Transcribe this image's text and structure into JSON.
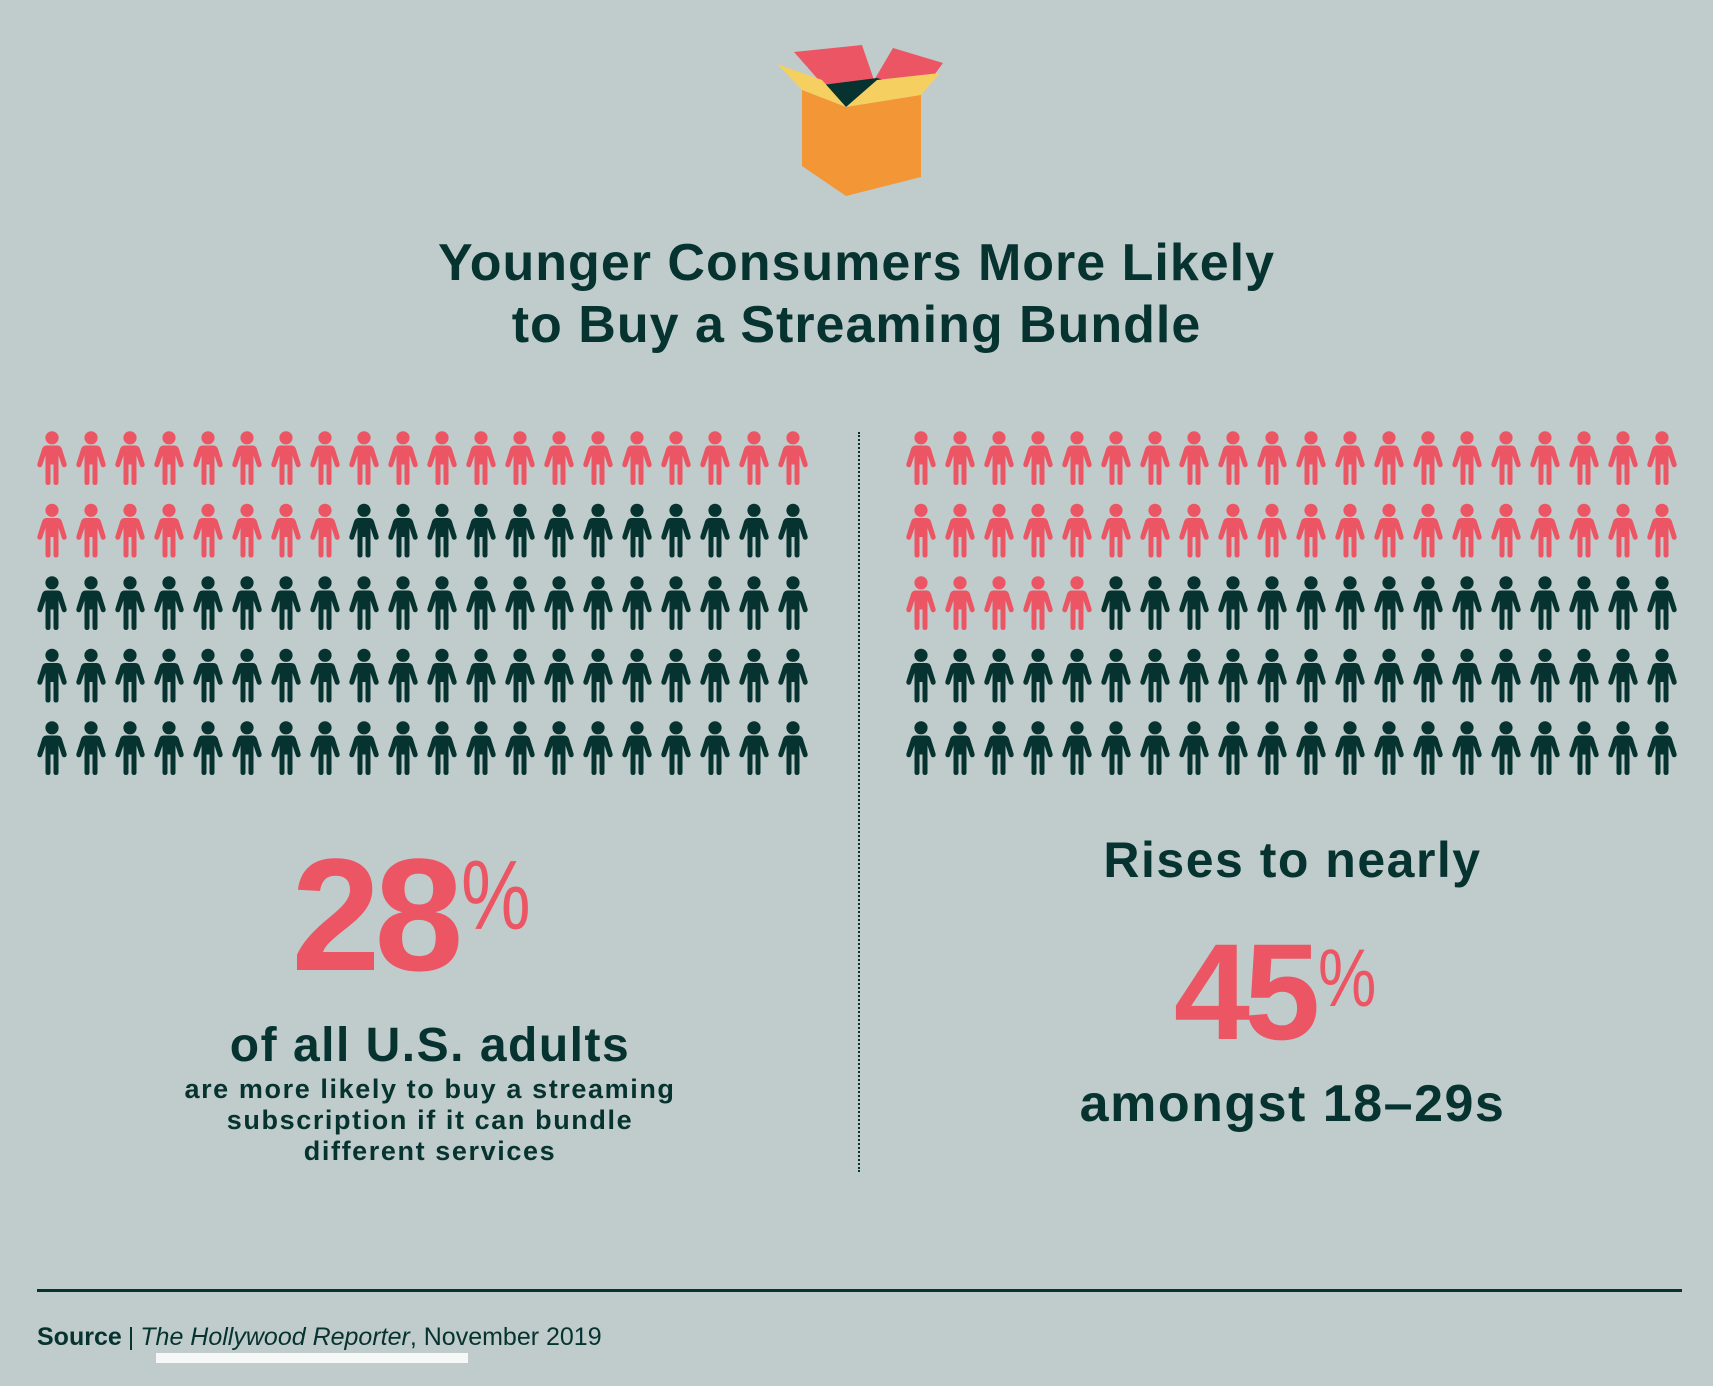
{
  "title": {
    "line1": "Younger Consumers More Likely",
    "line2": "to Buy a Streaming Bundle"
  },
  "colors": {
    "background": "#bfcccb",
    "highlight": "#ec5664",
    "base": "#063330",
    "box_orange": "#f39635",
    "box_yellow": "#f5d061",
    "box_pink": "#ec5664",
    "box_dark": "#063330"
  },
  "icons": {
    "header": "open-box-icon",
    "unit": "person-icon"
  },
  "left": {
    "stat_value": "28",
    "stat_suffix": "%",
    "headline": "of all U.S. adults",
    "description_lines": [
      "are more likely to buy a streaming",
      "subscription if it can bundle",
      "different services"
    ]
  },
  "right": {
    "lead": "Rises to nearly",
    "stat_value": "45",
    "stat_suffix": "%",
    "headline": "amongst 18–29s"
  },
  "footer": {
    "source_label": "Source",
    "separator": "|",
    "publication": "The Hollywood Reporter",
    "date_text": ", November 2019"
  },
  "chart_data": {
    "type": "pictogram",
    "title": "Younger Consumers More Likely to Buy a Streaming Bundle",
    "unit": "1 person = 1% of respondents",
    "grids": [
      {
        "name": "All U.S. adults",
        "total": 100,
        "rows": 5,
        "columns": 20,
        "highlighted": 28,
        "highlight_color": "#ec5664",
        "base_color": "#063330",
        "label": "28% of all U.S. adults are more likely to buy a streaming subscription if it can bundle different services"
      },
      {
        "name": "Adults 18–29",
        "total": 100,
        "rows": 5,
        "columns": 20,
        "highlighted": 45,
        "highlight_color": "#ec5664",
        "base_color": "#063330",
        "label": "Rises to nearly 45% amongst 18–29s"
      }
    ],
    "source": "The Hollywood Reporter, November 2019"
  }
}
